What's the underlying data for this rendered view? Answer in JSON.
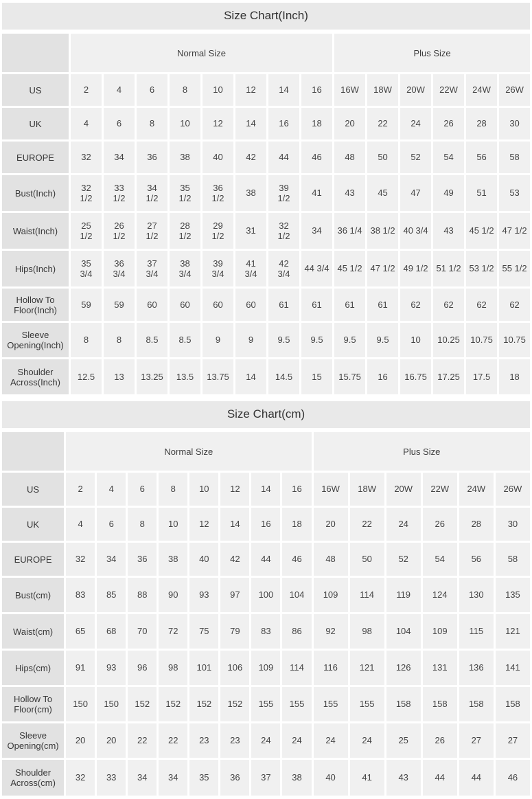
{
  "colors": {
    "title_bar_bg": "#e9e9e9",
    "label_cell_bg": "#e2e2e2",
    "value_cell_bg": "#f0f0f0",
    "text": "#3d3d3d"
  },
  "chart_data": [
    {
      "type": "table",
      "title": "Size Chart(Inch)",
      "column_groups": [
        {
          "label": "Normal Size",
          "span": 8
        },
        {
          "label": "Plus Size",
          "span": 6
        }
      ],
      "rows": [
        {
          "label": "US",
          "values": [
            "2",
            "4",
            "6",
            "8",
            "10",
            "12",
            "14",
            "16",
            "16W",
            "18W",
            "20W",
            "22W",
            "24W",
            "26W"
          ]
        },
        {
          "label": "UK",
          "values": [
            "4",
            "6",
            "8",
            "10",
            "12",
            "14",
            "16",
            "18",
            "20",
            "22",
            "24",
            "26",
            "28",
            "30"
          ]
        },
        {
          "label": "EUROPE",
          "values": [
            "32",
            "34",
            "36",
            "38",
            "40",
            "42",
            "44",
            "46",
            "48",
            "50",
            "52",
            "54",
            "56",
            "58"
          ]
        },
        {
          "label": "Bust(Inch)",
          "values": [
            "32\n1/2",
            "33\n1/2",
            "34\n1/2",
            "35\n1/2",
            "36\n1/2",
            "38",
            "39\n1/2",
            "41",
            "43",
            "45",
            "47",
            "49",
            "51",
            "53"
          ]
        },
        {
          "label": "Waist(Inch)",
          "values": [
            "25\n1/2",
            "26\n1/2",
            "27\n1/2",
            "28\n1/2",
            "29\n1/2",
            "31",
            "32\n1/2",
            "34",
            "36 1/4",
            "38 1/2",
            "40 3/4",
            "43",
            "45 1/2",
            "47 1/2"
          ]
        },
        {
          "label": "Hips(Inch)",
          "values": [
            "35\n3/4",
            "36\n3/4",
            "37\n3/4",
            "38\n3/4",
            "39\n3/4",
            "41\n3/4",
            "42\n3/4",
            "44 3/4",
            "45 1/2",
            "47 1/2",
            "49 1/2",
            "51 1/2",
            "53 1/2",
            "55 1/2"
          ]
        },
        {
          "label": "Hollow To Floor(Inch)",
          "values": [
            "59",
            "59",
            "60",
            "60",
            "60",
            "60",
            "61",
            "61",
            "61",
            "61",
            "62",
            "62",
            "62",
            "62"
          ]
        },
        {
          "label": "Sleeve Opening(Inch)",
          "values": [
            "8",
            "8",
            "8.5",
            "8.5",
            "9",
            "9",
            "9.5",
            "9.5",
            "9.5",
            "9.5",
            "10",
            "10.25",
            "10.75",
            "10.75"
          ]
        },
        {
          "label": "Shoulder Across(Inch)",
          "values": [
            "12.5",
            "13",
            "13.25",
            "13.5",
            "13.75",
            "14",
            "14.5",
            "15",
            "15.75",
            "16",
            "16.75",
            "17.25",
            "17.5",
            "18"
          ]
        }
      ]
    },
    {
      "type": "table",
      "title": "Size Chart(cm)",
      "column_groups": [
        {
          "label": "Normal Size",
          "span": 8
        },
        {
          "label": "Plus Size",
          "span": 6
        }
      ],
      "rows": [
        {
          "label": "US",
          "values": [
            "2",
            "4",
            "6",
            "8",
            "10",
            "12",
            "14",
            "16",
            "16W",
            "18W",
            "20W",
            "22W",
            "24W",
            "26W"
          ]
        },
        {
          "label": "UK",
          "values": [
            "4",
            "6",
            "8",
            "10",
            "12",
            "14",
            "16",
            "18",
            "20",
            "22",
            "24",
            "26",
            "28",
            "30"
          ]
        },
        {
          "label": "EUROPE",
          "values": [
            "32",
            "34",
            "36",
            "38",
            "40",
            "42",
            "44",
            "46",
            "48",
            "50",
            "52",
            "54",
            "56",
            "58"
          ]
        },
        {
          "label": "Bust(cm)",
          "values": [
            "83",
            "85",
            "88",
            "90",
            "93",
            "97",
            "100",
            "104",
            "109",
            "114",
            "119",
            "124",
            "130",
            "135"
          ]
        },
        {
          "label": "Waist(cm)",
          "values": [
            "65",
            "68",
            "70",
            "72",
            "75",
            "79",
            "83",
            "86",
            "92",
            "98",
            "104",
            "109",
            "115",
            "121"
          ]
        },
        {
          "label": "Hips(cm)",
          "values": [
            "91",
            "93",
            "96",
            "98",
            "101",
            "106",
            "109",
            "114",
            "116",
            "121",
            "126",
            "131",
            "136",
            "141"
          ]
        },
        {
          "label": "Hollow To Floor(cm)",
          "values": [
            "150",
            "150",
            "152",
            "152",
            "152",
            "152",
            "155",
            "155",
            "155",
            "155",
            "158",
            "158",
            "158",
            "158"
          ]
        },
        {
          "label": "Sleeve Opening(cm)",
          "values": [
            "20",
            "20",
            "22",
            "22",
            "23",
            "23",
            "24",
            "24",
            "24",
            "24",
            "25",
            "26",
            "27",
            "27"
          ]
        },
        {
          "label": "Shoulder Across(cm)",
          "values": [
            "32",
            "33",
            "34",
            "34",
            "35",
            "36",
            "37",
            "38",
            "40",
            "41",
            "43",
            "44",
            "44",
            "46"
          ]
        }
      ]
    }
  ]
}
